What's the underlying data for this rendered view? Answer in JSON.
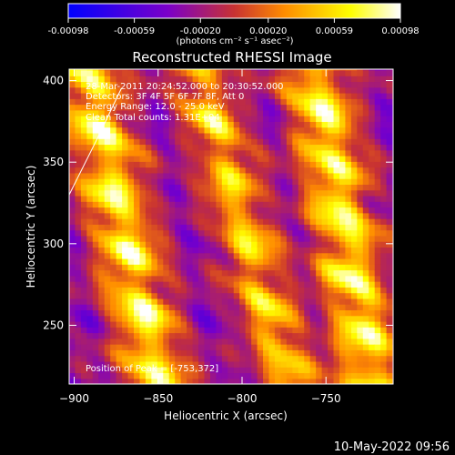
{
  "colorbar": {
    "ticks": [
      "-0.00098",
      "-0.00059",
      "-0.00020",
      "0.00020",
      "0.00059",
      "0.00098"
    ],
    "tick_values": [
      -0.00098,
      -0.00059,
      -0.0002,
      0.0002,
      0.00059,
      0.00098
    ],
    "range": [
      -0.00098,
      0.00098
    ],
    "unit_label": "(photons cm⁻² s⁻¹ asec⁻²)",
    "palette": [
      "#0000ff",
      "#7b00c8",
      "#c83232",
      "#ff8c00",
      "#ffff00",
      "#ffffff"
    ]
  },
  "chart_data": {
    "type": "heatmap",
    "title": "Reconstructed RHESSI Image",
    "xlabel": "Heliocentric X (arcsec)",
    "ylabel": "Heliocentric Y (arcsec)",
    "xlim": [
      -903,
      -710
    ],
    "ylim": [
      214,
      407
    ],
    "x_ticks": [
      -900,
      -850,
      -800,
      -750
    ],
    "y_ticks": [
      250,
      300,
      350,
      400
    ],
    "x_tick_labels": [
      "−900",
      "−850",
      "−800",
      "−750"
    ],
    "y_tick_labels": [
      "250",
      "300",
      "350",
      "400"
    ],
    "info_lines": [
      "28-Mar-2011 20:24:52.000 to 20:30:52.000",
      "Detectors: 3F 4F 5F 6F 7F 8F, Att 0",
      "Energy Range: 12.0 - 25.0 keV",
      "Clean    Total counts: 1.31E+04"
    ],
    "peak_label": "Position of Peak = [-753,372]",
    "peak_position": [
      -753,
      372
    ],
    "limb_points": [
      [
        -903,
        330
      ],
      [
        -886,
        365
      ],
      [
        -872,
        395
      ]
    ],
    "bright_bands": [
      {
        "x_at_bottom": -850,
        "x_at_top": -893,
        "width": 20,
        "peak": 0.00098
      },
      {
        "x_at_bottom": -772,
        "x_at_top": -826,
        "width": 18,
        "peak": 0.0008
      },
      {
        "x_at_bottom": -722,
        "x_at_top": -757,
        "width": 20,
        "peak": 0.00098
      }
    ],
    "grid": false
  },
  "timestamp": "10-May-2022 09:56"
}
